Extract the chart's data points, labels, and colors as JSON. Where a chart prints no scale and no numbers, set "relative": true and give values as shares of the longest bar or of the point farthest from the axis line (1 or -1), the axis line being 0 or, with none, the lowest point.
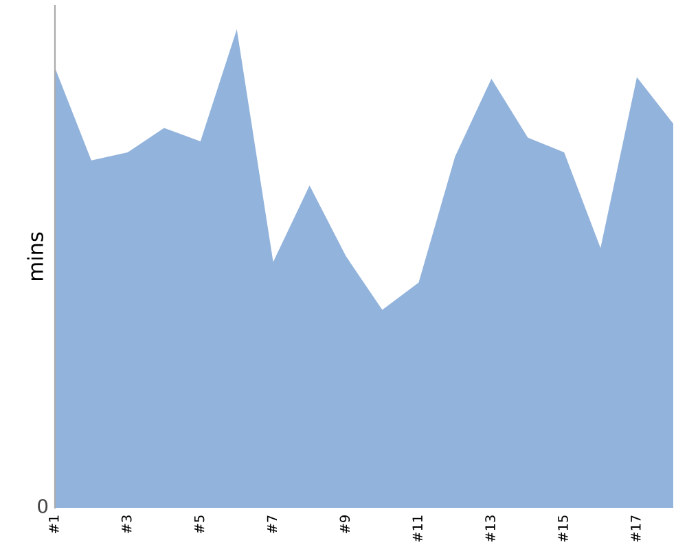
{
  "chart_data": {
    "type": "area",
    "ylabel": "mins",
    "relative": true,
    "annotations": [
      "0"
    ],
    "color": "#92b3dc",
    "categories": [
      "#1",
      null,
      "#3",
      null,
      "#5",
      null,
      "#7",
      null,
      "#9",
      null,
      "#11",
      null,
      "#13",
      null,
      "#15",
      null,
      "#17",
      null
    ],
    "values": [
      0.92,
      0.726,
      0.743,
      0.794,
      0.766,
      1,
      0.514,
      0.674,
      0.526,
      0.414,
      0.471,
      0.734,
      0.897,
      0.774,
      0.743,
      0.543,
      0.9,
      0.803
    ]
  }
}
